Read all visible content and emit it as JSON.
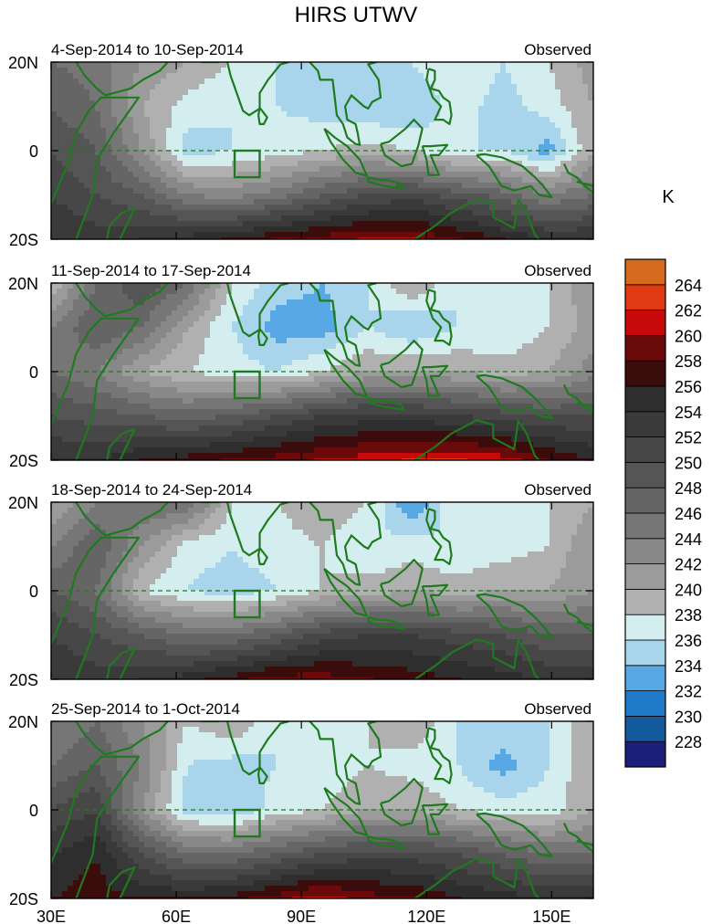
{
  "chart_data": {
    "type": "heatmap",
    "title": "HIRS UTWV",
    "variable_units": "K",
    "x_axis": {
      "range_deg_east": [
        30,
        160
      ],
      "ticks": [
        30,
        60,
        90,
        120,
        150
      ],
      "tick_labels": [
        "30E",
        "60E",
        "90E",
        "120E",
        "150E"
      ]
    },
    "y_axis": {
      "range_deg_north": [
        -20,
        20
      ],
      "ticks": [
        20,
        0,
        -20
      ],
      "tick_labels": [
        "20N",
        "0",
        "20S"
      ]
    },
    "equator_line": "dashed",
    "box_region": {
      "lon": [
        74,
        80
      ],
      "lat": [
        -6,
        0
      ]
    },
    "colorbar": {
      "label": "K",
      "levels": [
        228,
        230,
        232,
        234,
        236,
        238,
        240,
        242,
        244,
        246,
        248,
        250,
        252,
        254,
        256,
        258,
        260,
        262,
        264
      ],
      "level_labels": [
        "228",
        "230",
        "232",
        "234",
        "236",
        "238",
        "240",
        "242",
        "244",
        "246",
        "248",
        "250",
        "252",
        "254",
        "256",
        "258",
        "260",
        "262",
        "264"
      ],
      "colors": [
        "#1c1f7a",
        "#125a9c",
        "#1e79c8",
        "#58a8e6",
        "#a9d5ec",
        "#d4eeef",
        "#b0b0b0",
        "#9b9b9b",
        "#888888",
        "#767676",
        "#656565",
        "#555555",
        "#474747",
        "#3a3a3a",
        "#2e2e2e",
        "#3a0c0c",
        "#6b0a0a",
        "#c70a0a",
        "#e03a12",
        "#d46a1e"
      ]
    },
    "panels": [
      {
        "date_range": "4-Sep-2014 to 10-Sep-2014",
        "label": "Observed",
        "field_summary": "K values per 10° lon column from 30E to 160E, at latitude rows 20N, 10N, 0, 10S, 20S",
        "grid": [
          [
            246,
            245,
            242,
            240,
            238,
            236,
            236,
            235,
            236,
            238,
            236,
            238,
            241
          ],
          [
            248,
            246,
            240,
            237,
            236,
            236,
            235,
            234,
            234,
            237,
            235,
            237,
            240
          ],
          [
            250,
            248,
            242,
            235,
            236,
            237,
            238,
            239,
            238,
            236,
            236,
            233,
            240
          ],
          [
            252,
            250,
            248,
            244,
            243,
            245,
            248,
            250,
            251,
            249,
            247,
            244,
            246
          ],
          [
            254,
            253,
            254,
            255,
            256,
            258,
            259,
            260,
            260,
            258,
            256,
            254,
            254
          ]
        ]
      },
      {
        "date_range": "11-Sep-2014 to 17-Sep-2014",
        "label": "Observed",
        "field_summary": "K values per 10° lon column from 30E to 160E, at latitude rows 20N, 10N, 0, 10S, 20S",
        "grid": [
          [
            238,
            246,
            250,
            246,
            238,
            235,
            234,
            236,
            240,
            236,
            236,
            238,
            242
          ],
          [
            244,
            248,
            246,
            240,
            236,
            233,
            233,
            236,
            234,
            236,
            236,
            238,
            241
          ],
          [
            246,
            244,
            240,
            238,
            237,
            236,
            238,
            240,
            240,
            240,
            239,
            240,
            243
          ],
          [
            250,
            249,
            248,
            247,
            248,
            250,
            252,
            253,
            253,
            252,
            251,
            250,
            250
          ],
          [
            254,
            254,
            256,
            257,
            258,
            259,
            260,
            261,
            262,
            262,
            261,
            258,
            256
          ]
        ]
      },
      {
        "date_range": "18-Sep-2014 to 24-Sep-2014",
        "label": "Observed",
        "field_summary": "K values per 10° lon column from 30E to 160E, at latitude rows 20N, 10N, 0, 10S, 20S",
        "grid": [
          [
            240,
            244,
            246,
            246,
            238,
            238,
            240,
            238,
            232,
            238,
            236,
            238,
            240
          ],
          [
            244,
            248,
            242,
            237,
            236,
            237,
            238,
            236,
            237,
            236,
            237,
            238,
            242
          ],
          [
            248,
            246,
            238,
            236,
            235,
            236,
            238,
            239,
            240,
            239,
            240,
            240,
            242
          ],
          [
            252,
            250,
            248,
            246,
            246,
            248,
            251,
            252,
            252,
            251,
            250,
            248,
            248
          ],
          [
            254,
            253,
            254,
            255,
            257,
            259,
            259,
            258,
            257,
            256,
            255,
            254,
            254
          ]
        ]
      },
      {
        "date_range": "25-Sep-2014 to 1-Oct-2014",
        "label": "Observed",
        "field_summary": "K values per 10° lon column from 30E to 160E, at latitude rows 20N, 10N, 0, 10S, 20S",
        "grid": [
          [
            244,
            246,
            242,
            238,
            240,
            236,
            236,
            238,
            240,
            236,
            236,
            236,
            240
          ],
          [
            246,
            248,
            244,
            236,
            235,
            236,
            236,
            238,
            237,
            236,
            233,
            236,
            240
          ],
          [
            250,
            252,
            242,
            235,
            234,
            237,
            238,
            240,
            240,
            238,
            237,
            237,
            240
          ],
          [
            254,
            256,
            250,
            246,
            246,
            248,
            250,
            251,
            251,
            250,
            248,
            246,
            246
          ],
          [
            256,
            257,
            256,
            256,
            257,
            259,
            261,
            259,
            258,
            256,
            255,
            254,
            254
          ]
        ]
      }
    ]
  }
}
